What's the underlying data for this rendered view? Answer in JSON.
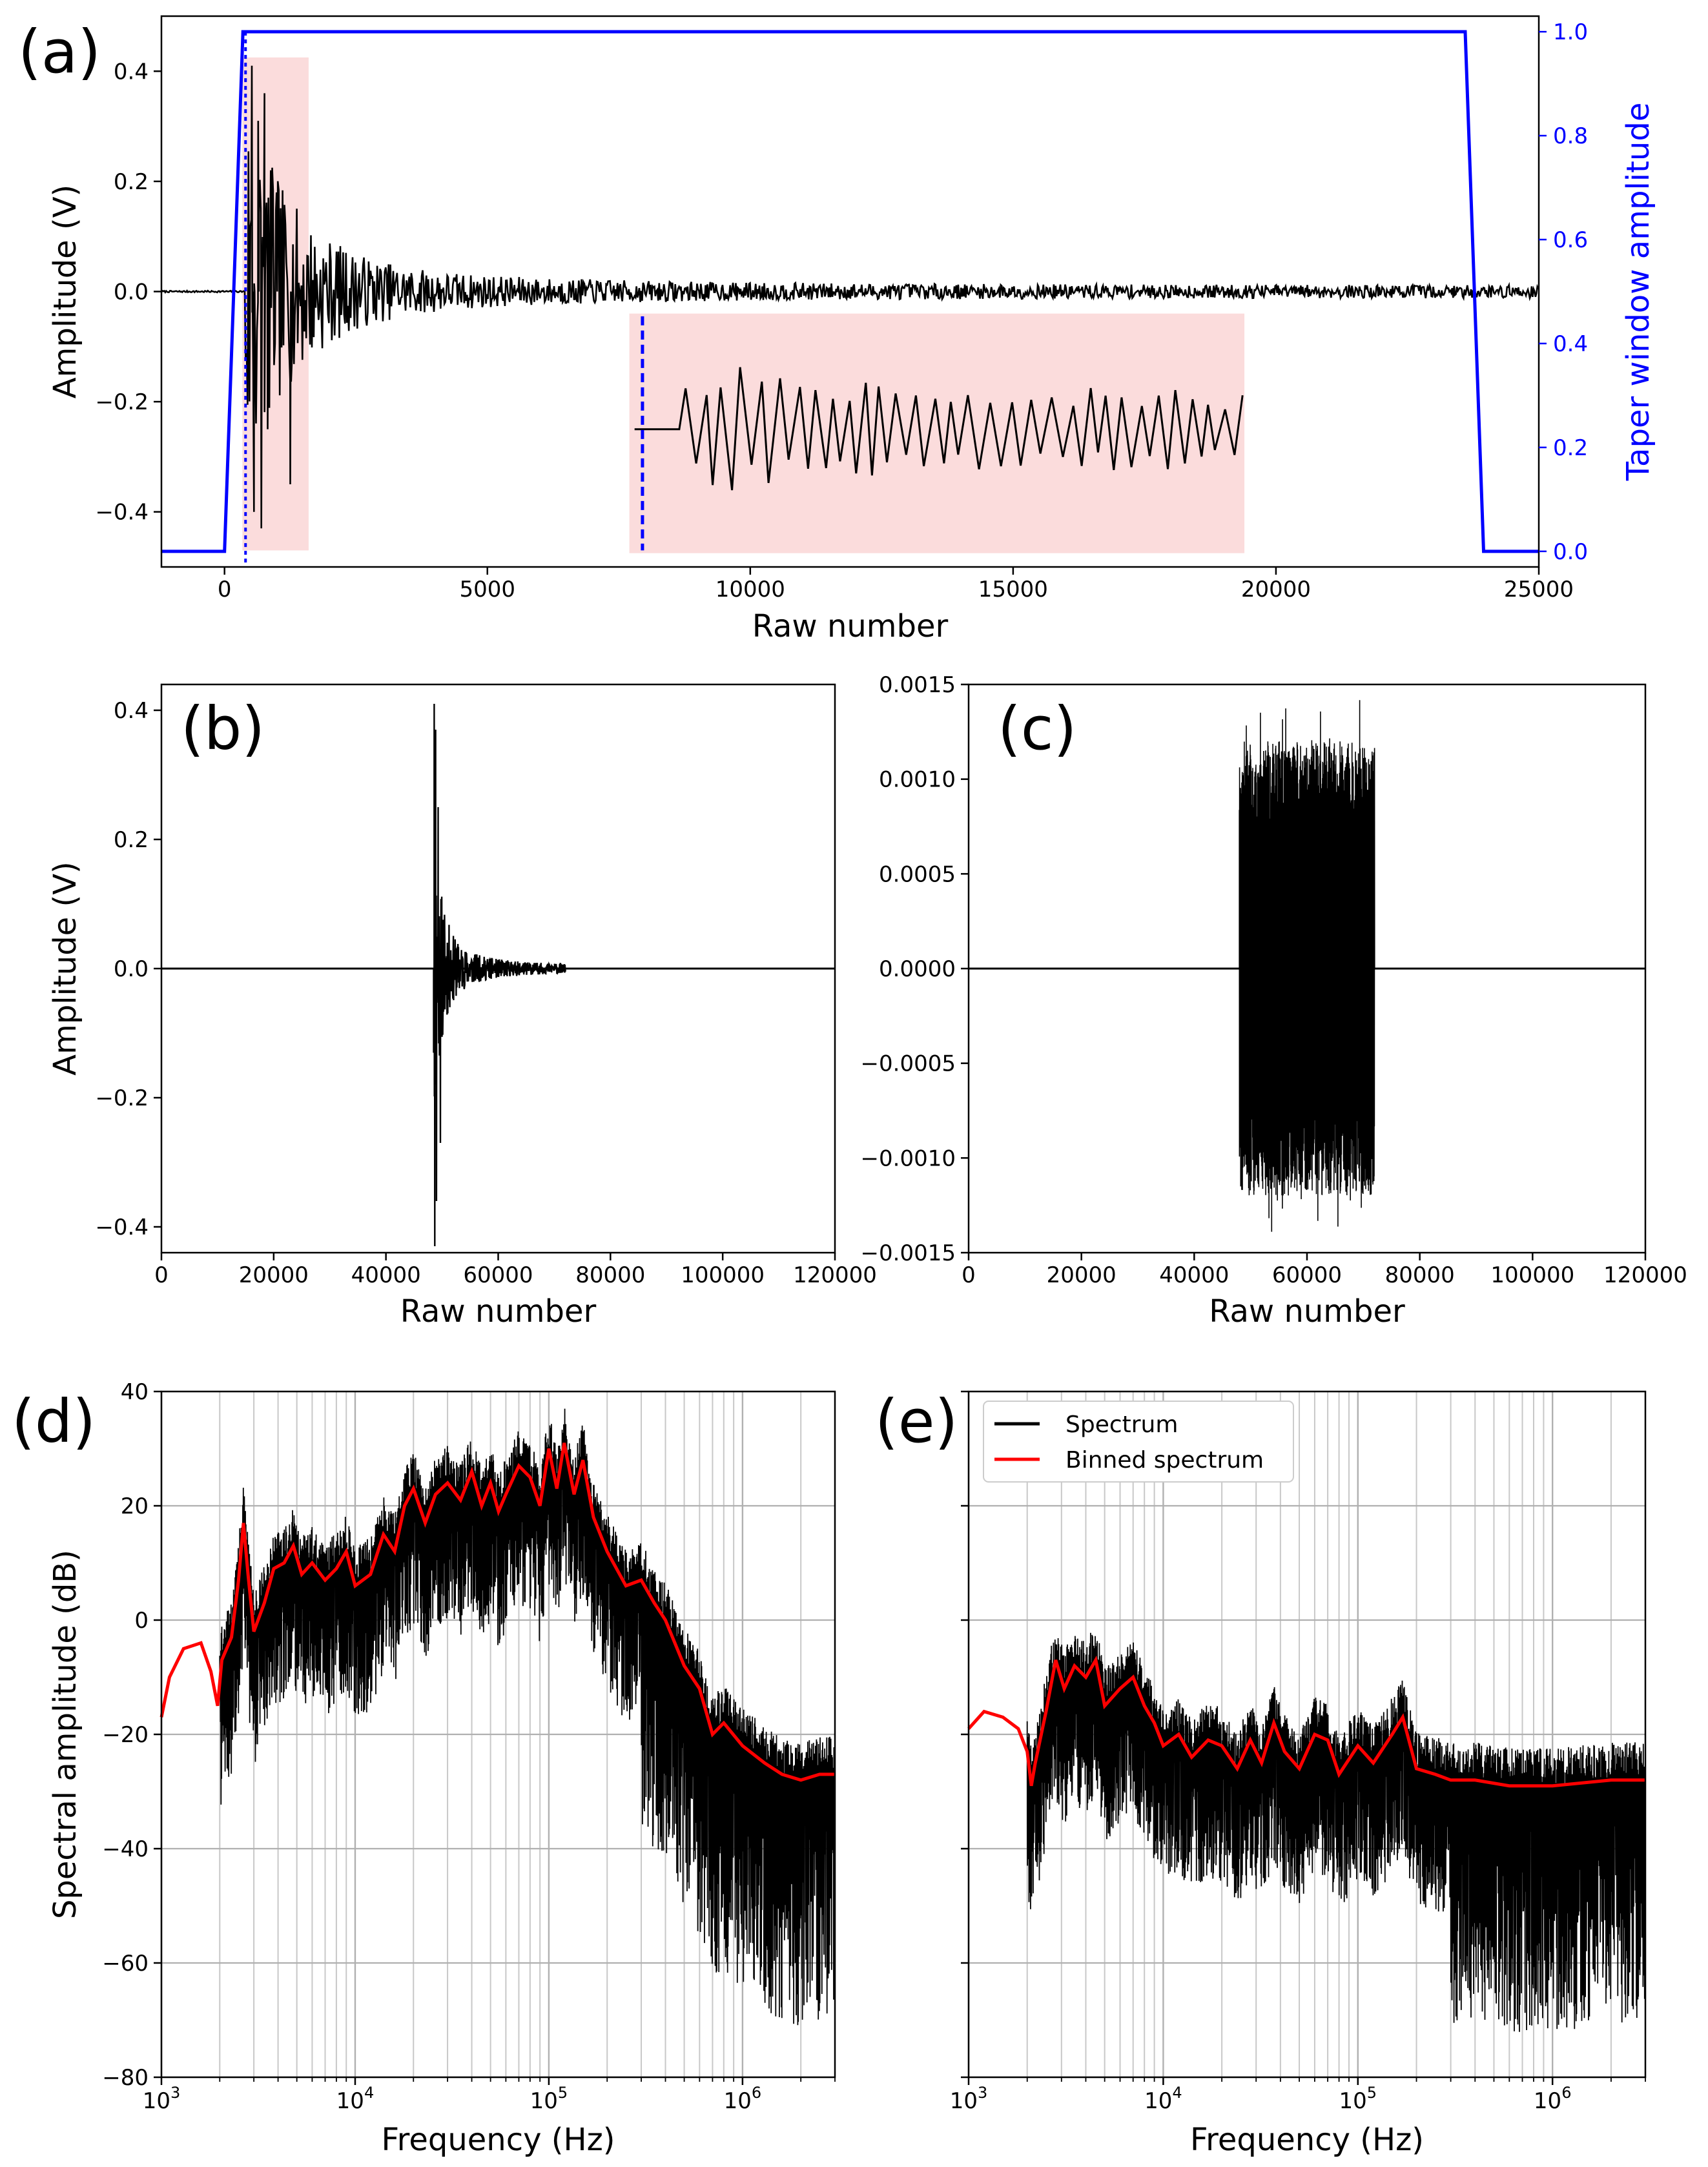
{
  "chart_data": [
    {
      "id": "a",
      "panel_label": "(a)",
      "type": "line",
      "xlabel": "Raw number",
      "ylabel": "Amplitude (V)",
      "ylabel_right": "Taper window amplitude",
      "xlim": [
        -1200,
        25000
      ],
      "ylim": [
        -0.5,
        0.5
      ],
      "ylim_right": [
        -0.03,
        1.03
      ],
      "xticks": [
        0,
        5000,
        10000,
        15000,
        20000,
        25000
      ],
      "xtick_labels": [
        "0",
        "5000",
        "10000",
        "15000",
        "20000",
        "25000"
      ],
      "yticks": [
        -0.4,
        -0.2,
        0.0,
        0.2,
        0.4
      ],
      "ytick_labels": [
        "−0.4",
        "−0.2",
        "0.0",
        "0.2",
        "0.4"
      ],
      "yticks_right": [
        0.0,
        0.2,
        0.4,
        0.6,
        0.8,
        1.0
      ],
      "ytick_labels_right": [
        "0.0",
        "0.2",
        "0.4",
        "0.6",
        "0.8",
        "1.0"
      ],
      "taper": {
        "x": [
          -1200,
          0,
          350,
          23600,
          23950,
          25000
        ],
        "y": [
          0,
          0,
          1,
          1,
          0,
          0
        ],
        "color": "#0000ff"
      },
      "signal": {
        "onset": 400,
        "peak_amplitude": 0.41,
        "min_amplitude": -0.43,
        "decay_to": 25000,
        "color": "#000000"
      },
      "picked_onset": 400,
      "highlight_region": [
        400,
        1600
      ],
      "inset_region": {
        "x": [
          7700,
          19400
        ],
        "y": [
          -0.475,
          -0.04
        ]
      },
      "colors": {
        "shade": "#fbdcdc"
      }
    },
    {
      "id": "b",
      "panel_label": "(b)",
      "type": "line",
      "xlabel": "Raw number",
      "ylabel": "Amplitude (V)",
      "xlim": [
        0,
        120000
      ],
      "ylim": [
        -0.44,
        0.44
      ],
      "xticks": [
        0,
        20000,
        40000,
        60000,
        80000,
        100000,
        120000
      ],
      "xtick_labels": [
        "0",
        "20000",
        "40000",
        "60000",
        "80000",
        "100000",
        "120000"
      ],
      "yticks": [
        -0.4,
        -0.2,
        0.0,
        0.2,
        0.4
      ],
      "ytick_labels": [
        "−0.4",
        "−0.2",
        "0.0",
        "0.2",
        "0.4"
      ],
      "signal": {
        "onset": 48500,
        "end": 72000,
        "peak_amplitude": 0.41,
        "min_amplitude": -0.43
      }
    },
    {
      "id": "c",
      "panel_label": "(c)",
      "type": "line",
      "xlabel": "Raw number",
      "ylabel": "",
      "xlim": [
        0,
        120000
      ],
      "ylim": [
        -0.0015,
        0.0015
      ],
      "xticks": [
        0,
        20000,
        40000,
        60000,
        80000,
        100000,
        120000
      ],
      "xtick_labels": [
        "0",
        "20000",
        "40000",
        "60000",
        "80000",
        "100000",
        "120000"
      ],
      "yticks": [
        -0.0015,
        -0.001,
        -0.0005,
        0.0,
        0.0005,
        0.001,
        0.0015
      ],
      "ytick_labels": [
        "−0.0015",
        "−0.0010",
        "−0.0005",
        "0.0000",
        "0.0005",
        "0.0010",
        "0.0015"
      ],
      "signal": {
        "start": 48000,
        "end": 72000,
        "envelope": 0.0012,
        "max": 0.00145,
        "min": -0.00137
      }
    },
    {
      "id": "d",
      "panel_label": "(d)",
      "type": "line",
      "xscale": "log",
      "xlabel": "Frequency (Hz)",
      "ylabel": "Spectral amplitude (dB)",
      "xlim": [
        1000,
        3000000
      ],
      "ylim": [
        -80,
        40
      ],
      "xticks": [
        1000,
        10000,
        100000,
        1000000
      ],
      "xtick_bases": [
        "10",
        "10",
        "10",
        "10"
      ],
      "xtick_exps": [
        "3",
        "4",
        "5",
        "6"
      ],
      "yticks": [
        -80,
        -60,
        -40,
        -20,
        0,
        20,
        40
      ],
      "ytick_labels": [
        "−80",
        "−60",
        "−40",
        "−20",
        "0",
        "20",
        "40"
      ],
      "grid": true,
      "binned_spectrum": {
        "f": [
          1000,
          1100,
          1300,
          1600,
          1800,
          1950,
          2050,
          2300,
          2500,
          2650,
          2800,
          3000,
          3400,
          3800,
          4300,
          4800,
          5300,
          6000,
          7000,
          8000,
          9000,
          10000,
          12000,
          14000,
          16000,
          18000,
          20000,
          23000,
          26000,
          30000,
          35000,
          40000,
          45000,
          50000,
          55000,
          60000,
          70000,
          80000,
          90000,
          100000,
          110000,
          120000,
          135000,
          150000,
          170000,
          200000,
          250000,
          300000,
          350000,
          400000,
          500000,
          600000,
          700000,
          800000,
          1000000,
          1300000,
          1600000,
          2000000,
          2500000,
          3000000
        ],
        "db": [
          -17,
          -10,
          -5,
          -4,
          -9,
          -15,
          -7,
          -3,
          7,
          17,
          8,
          -2,
          3,
          9,
          10,
          13,
          8,
          10,
          7,
          9,
          12,
          6,
          8,
          15,
          12,
          20,
          23,
          17,
          22,
          24,
          21,
          26,
          20,
          24,
          19,
          22,
          27,
          25,
          20,
          30,
          23,
          31,
          22,
          28,
          18,
          12,
          6,
          7,
          3,
          0,
          -8,
          -12,
          -20,
          -18,
          -22,
          -25,
          -27,
          -28,
          -27,
          -27
        ]
      },
      "spectrum_spread_db": 12,
      "colors": {
        "spectrum": "#000000",
        "binned": "#ff0000"
      }
    },
    {
      "id": "e",
      "panel_label": "(e)",
      "type": "line",
      "xscale": "log",
      "xlabel": "Frequency (Hz)",
      "ylabel": "",
      "xlim": [
        1000,
        3000000
      ],
      "ylim": [
        -80,
        40
      ],
      "xticks": [
        1000,
        10000,
        100000,
        1000000
      ],
      "xtick_bases": [
        "10",
        "10",
        "10",
        "10"
      ],
      "xtick_exps": [
        "3",
        "4",
        "5",
        "6"
      ],
      "yticks": [
        -80,
        -60,
        -40,
        -20,
        0,
        20,
        40
      ],
      "grid": true,
      "legend": {
        "placement": "top-left",
        "entries": [
          "Spectrum",
          "Binned spectrum"
        ]
      },
      "binned_spectrum": {
        "f": [
          1000,
          1200,
          1500,
          1800,
          2000,
          2100,
          2200,
          2500,
          2800,
          3100,
          3500,
          4000,
          4500,
          5000,
          6000,
          7000,
          8000,
          9000,
          10000,
          12000,
          14000,
          17000,
          20000,
          24000,
          28000,
          32000,
          37000,
          42000,
          50000,
          60000,
          70000,
          80000,
          100000,
          120000,
          150000,
          170000,
          200000,
          250000,
          300000,
          400000,
          600000,
          1000000,
          2000000,
          3000000
        ],
        "db": [
          -19,
          -16,
          -17,
          -19,
          -23,
          -29,
          -25,
          -16,
          -7,
          -12,
          -8,
          -10,
          -7,
          -15,
          -12,
          -10,
          -15,
          -18,
          -22,
          -20,
          -24,
          -21,
          -22,
          -26,
          -21,
          -25,
          -18,
          -23,
          -26,
          -20,
          -21,
          -27,
          -22,
          -25,
          -20,
          -17,
          -26,
          -27,
          -28,
          -28,
          -29,
          -29,
          -28,
          -28
        ]
      },
      "spectrum_spread_db": 12,
      "colors": {
        "spectrum": "#000000",
        "binned": "#ff0000"
      }
    }
  ]
}
